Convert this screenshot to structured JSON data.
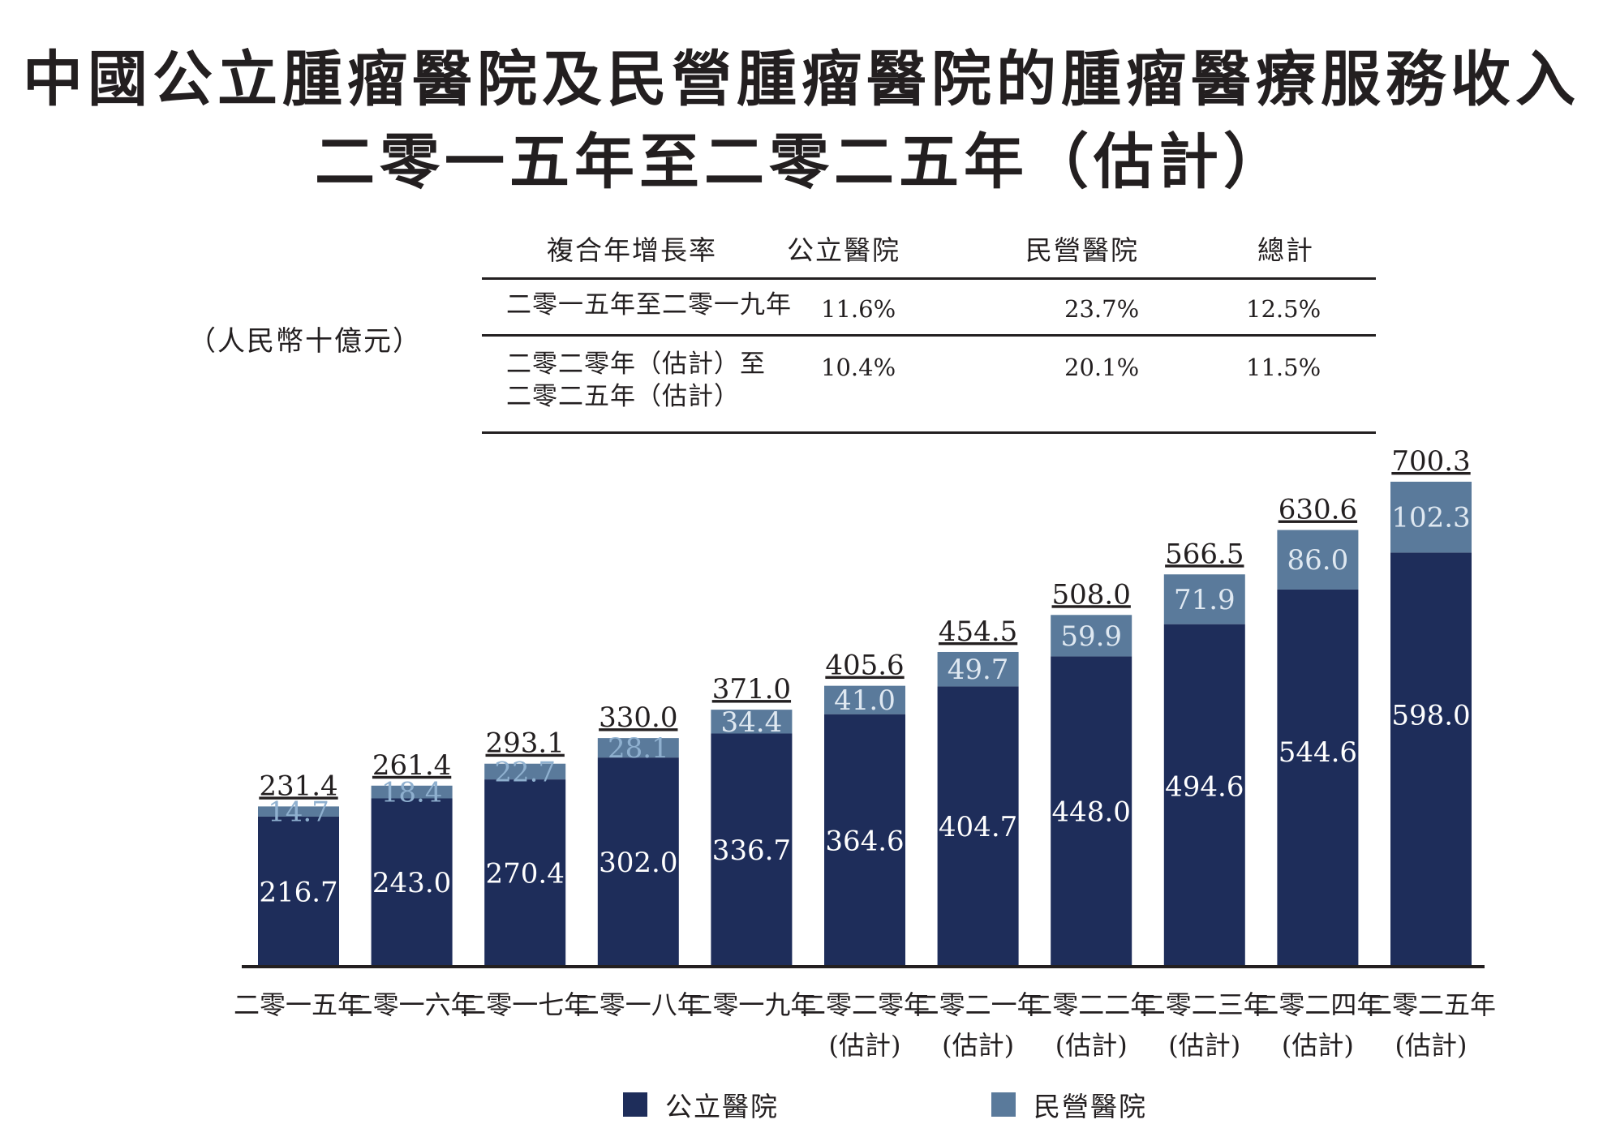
{
  "title_line1": "中國公立腫瘤醫院及民營腫瘤醫院的腫瘤醫療服務收入",
  "title_line2": "二零一五年至二零二五年（估計）",
  "unit_label": "（人民幣十億元）",
  "cagr_table": {
    "headers": [
      "複合年增長率",
      "公立醫院",
      "民營醫院",
      "總計"
    ],
    "rows": [
      {
        "period": "二零一五年至二零一九年",
        "public": "11.6%",
        "private": "23.7%",
        "total": "12.5%"
      },
      {
        "period": "二零二零年（估計）至\n二零二五年（估計）",
        "public": "10.4%",
        "private": "20.1%",
        "total": "11.5%"
      }
    ]
  },
  "colors": {
    "public": "#1e2d5a",
    "private": "#5a7a9b",
    "text": "#231f20",
    "label_on_bar": "#ffffff"
  },
  "chart_data": {
    "type": "bar",
    "stacked": true,
    "categories": [
      "二零一五年",
      "二零一六年",
      "二零一七年",
      "二零一八年",
      "二零一九年",
      "二零二零年\n(估計)",
      "二零二一年\n(估計)",
      "二零二二年\n(估計)",
      "二零二三年\n(估計)",
      "二零二四年\n(估計)",
      "二零二五年\n(估計)"
    ],
    "series": [
      {
        "name": "公立醫院",
        "values": [
          216.7,
          243.0,
          270.4,
          302.0,
          336.7,
          364.6,
          404.7,
          448.0,
          494.6,
          544.6,
          598.0
        ]
      },
      {
        "name": "民營醫院",
        "values": [
          14.7,
          18.4,
          22.7,
          28.1,
          34.4,
          41.0,
          49.7,
          59.9,
          71.9,
          86.0,
          102.3
        ]
      }
    ],
    "totals": [
      231.4,
      261.4,
      293.1,
      330.0,
      371.0,
      405.6,
      454.5,
      508.0,
      566.5,
      630.6,
      700.3
    ],
    "ylim": [
      0,
      700.3
    ],
    "legend": "bottom",
    "grid": false
  }
}
